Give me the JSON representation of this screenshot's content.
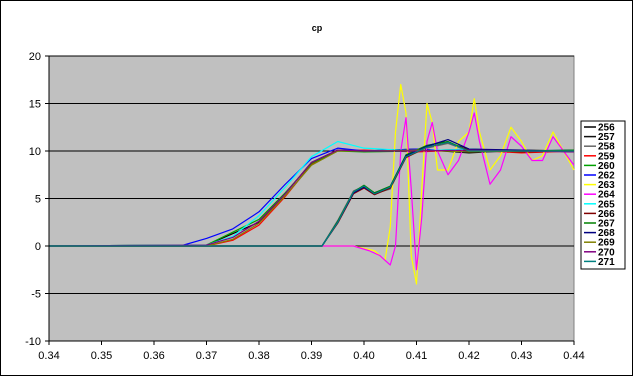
{
  "chart_data": {
    "type": "line",
    "title": "cp",
    "xlabel": "",
    "ylabel": "",
    "xlim": [
      0.34,
      0.44
    ],
    "ylim": [
      -10,
      20
    ],
    "x_ticks": [
      "0.34",
      "0.35",
      "0.36",
      "0.37",
      "0.38",
      "0.39",
      "0.40",
      "0.41",
      "0.42",
      "0.43",
      "0.44"
    ],
    "y_ticks": [
      "-10",
      "-5",
      "0",
      "5",
      "10",
      "15",
      "20"
    ],
    "grid": "horizontal",
    "plot_background": "#c0c0c0",
    "legend_position": "right",
    "series": [
      {
        "name": "256",
        "color": "#000000",
        "points": [
          [
            0.34,
            0
          ],
          [
            0.37,
            0.1
          ],
          [
            0.38,
            2.5
          ],
          [
            0.385,
            5.5
          ],
          [
            0.39,
            8.8
          ],
          [
            0.395,
            10.1
          ],
          [
            0.4,
            10
          ],
          [
            0.41,
            10.2
          ],
          [
            0.42,
            9.8
          ],
          [
            0.43,
            10.1
          ],
          [
            0.44,
            10
          ]
        ]
      },
      {
        "name": "257",
        "color": "#111111",
        "points": [
          [
            0.34,
            0
          ],
          [
            0.392,
            0
          ],
          [
            0.395,
            2.5
          ],
          [
            0.398,
            5.6
          ],
          [
            0.4,
            6.2
          ],
          [
            0.402,
            5.6
          ],
          [
            0.405,
            6.2
          ],
          [
            0.408,
            9.5
          ],
          [
            0.412,
            10.5
          ],
          [
            0.415,
            11
          ],
          [
            0.42,
            10.2
          ],
          [
            0.43,
            10
          ],
          [
            0.44,
            10
          ]
        ]
      },
      {
        "name": "258",
        "color": "#666666",
        "points": [
          [
            0.34,
            0
          ],
          [
            0.392,
            0
          ],
          [
            0.395,
            2.7
          ],
          [
            0.398,
            5.8
          ],
          [
            0.4,
            6.3
          ],
          [
            0.402,
            5.5
          ],
          [
            0.405,
            6
          ],
          [
            0.408,
            9.4
          ],
          [
            0.412,
            10.3
          ],
          [
            0.416,
            10.8
          ],
          [
            0.42,
            10
          ],
          [
            0.43,
            10.1
          ],
          [
            0.44,
            9.9
          ]
        ]
      },
      {
        "name": "259",
        "color": "#ff0000",
        "points": [
          [
            0.34,
            0
          ],
          [
            0.37,
            0
          ],
          [
            0.375,
            0.6
          ],
          [
            0.38,
            2.2
          ],
          [
            0.385,
            5.2
          ],
          [
            0.39,
            8.6
          ],
          [
            0.395,
            10
          ],
          [
            0.4,
            10.1
          ],
          [
            0.41,
            9.9
          ],
          [
            0.42,
            10.1
          ],
          [
            0.43,
            9.8
          ],
          [
            0.44,
            10
          ]
        ]
      },
      {
        "name": "260",
        "color": "#00a000",
        "points": [
          [
            0.34,
            0
          ],
          [
            0.37,
            0.1
          ],
          [
            0.38,
            2.8
          ],
          [
            0.385,
            5.6
          ],
          [
            0.39,
            8.7
          ],
          [
            0.395,
            10
          ],
          [
            0.4,
            9.9
          ],
          [
            0.41,
            10
          ],
          [
            0.42,
            10.2
          ],
          [
            0.43,
            9.9
          ],
          [
            0.44,
            10.1
          ]
        ]
      },
      {
        "name": "262",
        "color": "#0000ff",
        "points": [
          [
            0.34,
            0
          ],
          [
            0.365,
            0
          ],
          [
            0.37,
            0.8
          ],
          [
            0.375,
            1.8
          ],
          [
            0.38,
            3.6
          ],
          [
            0.385,
            6.5
          ],
          [
            0.39,
            9.2
          ],
          [
            0.395,
            10.3
          ],
          [
            0.4,
            10
          ],
          [
            0.41,
            10.2
          ],
          [
            0.42,
            9.9
          ],
          [
            0.43,
            10
          ],
          [
            0.44,
            10.1
          ]
        ]
      },
      {
        "name": "263",
        "color": "#ffff00",
        "points": [
          [
            0.34,
            0
          ],
          [
            0.398,
            0
          ],
          [
            0.402,
            -0.5
          ],
          [
            0.404,
            -1.5
          ],
          [
            0.405,
            2
          ],
          [
            0.406,
            12
          ],
          [
            0.407,
            17
          ],
          [
            0.408,
            14
          ],
          [
            0.409,
            -1
          ],
          [
            0.41,
            -4
          ],
          [
            0.411,
            6
          ],
          [
            0.412,
            15
          ],
          [
            0.413,
            13
          ],
          [
            0.414,
            8
          ],
          [
            0.416,
            8
          ],
          [
            0.418,
            11
          ],
          [
            0.42,
            12
          ],
          [
            0.421,
            15.5
          ],
          [
            0.422,
            12
          ],
          [
            0.424,
            8
          ],
          [
            0.426,
            9.5
          ],
          [
            0.428,
            12.5
          ],
          [
            0.43,
            11
          ],
          [
            0.432,
            9
          ],
          [
            0.434,
            9.5
          ],
          [
            0.436,
            12
          ],
          [
            0.438,
            10
          ],
          [
            0.44,
            8
          ]
        ]
      },
      {
        "name": "264",
        "color": "#ff00ff",
        "points": [
          [
            0.34,
            0
          ],
          [
            0.398,
            0
          ],
          [
            0.401,
            -0.5
          ],
          [
            0.403,
            -1
          ],
          [
            0.405,
            -2
          ],
          [
            0.406,
            0
          ],
          [
            0.407,
            10
          ],
          [
            0.408,
            13.5
          ],
          [
            0.409,
            6
          ],
          [
            0.41,
            -2.5
          ],
          [
            0.411,
            3
          ],
          [
            0.412,
            11
          ],
          [
            0.413,
            13
          ],
          [
            0.414,
            10
          ],
          [
            0.416,
            7.5
          ],
          [
            0.418,
            9
          ],
          [
            0.42,
            12
          ],
          [
            0.421,
            14
          ],
          [
            0.422,
            11
          ],
          [
            0.424,
            6.5
          ],
          [
            0.426,
            8
          ],
          [
            0.428,
            11.5
          ],
          [
            0.43,
            10.5
          ],
          [
            0.432,
            9
          ],
          [
            0.434,
            9
          ],
          [
            0.436,
            11.5
          ],
          [
            0.438,
            10
          ],
          [
            0.44,
            8.5
          ]
        ]
      },
      {
        "name": "265",
        "color": "#00ffff",
        "points": [
          [
            0.34,
            0
          ],
          [
            0.37,
            0.1
          ],
          [
            0.375,
            1
          ],
          [
            0.38,
            3.2
          ],
          [
            0.385,
            6.2
          ],
          [
            0.39,
            9.4
          ],
          [
            0.395,
            11
          ],
          [
            0.4,
            10.3
          ],
          [
            0.41,
            10
          ],
          [
            0.42,
            10.2
          ],
          [
            0.43,
            10
          ],
          [
            0.44,
            10
          ]
        ]
      },
      {
        "name": "266",
        "color": "#800000",
        "points": [
          [
            0.34,
            0
          ],
          [
            0.392,
            0
          ],
          [
            0.395,
            2.4
          ],
          [
            0.398,
            5.5
          ],
          [
            0.4,
            6.1
          ],
          [
            0.402,
            5.4
          ],
          [
            0.405,
            6.1
          ],
          [
            0.408,
            9.3
          ],
          [
            0.412,
            10.4
          ],
          [
            0.416,
            10.9
          ],
          [
            0.42,
            10.1
          ],
          [
            0.43,
            9.9
          ],
          [
            0.44,
            10
          ]
        ]
      },
      {
        "name": "267",
        "color": "#008000",
        "points": [
          [
            0.34,
            0
          ],
          [
            0.392,
            0
          ],
          [
            0.395,
            2.6
          ],
          [
            0.398,
            5.7
          ],
          [
            0.4,
            6.4
          ],
          [
            0.402,
            5.6
          ],
          [
            0.405,
            6.3
          ],
          [
            0.408,
            9.6
          ],
          [
            0.412,
            10.6
          ],
          [
            0.416,
            11
          ],
          [
            0.42,
            10
          ],
          [
            0.43,
            10
          ],
          [
            0.44,
            10.1
          ]
        ]
      },
      {
        "name": "268",
        "color": "#000080",
        "points": [
          [
            0.34,
            0
          ],
          [
            0.392,
            0
          ],
          [
            0.395,
            2.5
          ],
          [
            0.398,
            5.6
          ],
          [
            0.4,
            6.2
          ],
          [
            0.402,
            5.5
          ],
          [
            0.405,
            6.2
          ],
          [
            0.408,
            9.5
          ],
          [
            0.412,
            10.5
          ],
          [
            0.416,
            11.2
          ],
          [
            0.42,
            10.2
          ],
          [
            0.43,
            10.1
          ],
          [
            0.44,
            9.9
          ]
        ]
      },
      {
        "name": "269",
        "color": "#808000",
        "points": [
          [
            0.34,
            0
          ],
          [
            0.37,
            0
          ],
          [
            0.375,
            0.7
          ],
          [
            0.38,
            2.4
          ],
          [
            0.385,
            5.3
          ],
          [
            0.39,
            8.5
          ],
          [
            0.395,
            10
          ],
          [
            0.4,
            10
          ],
          [
            0.41,
            10.1
          ],
          [
            0.42,
            9.9
          ],
          [
            0.43,
            10
          ],
          [
            0.44,
            10
          ]
        ]
      },
      {
        "name": "270",
        "color": "#800080",
        "points": [
          [
            0.34,
            0
          ],
          [
            0.37,
            0.1
          ],
          [
            0.375,
            0.9
          ],
          [
            0.38,
            2.6
          ],
          [
            0.385,
            5.5
          ],
          [
            0.39,
            8.8
          ],
          [
            0.395,
            10.1
          ],
          [
            0.4,
            10
          ],
          [
            0.41,
            10
          ],
          [
            0.42,
            10.1
          ],
          [
            0.43,
            10
          ],
          [
            0.44,
            9.9
          ]
        ]
      },
      {
        "name": "271",
        "color": "#008080",
        "points": [
          [
            0.34,
            0
          ],
          [
            0.392,
            0
          ],
          [
            0.395,
            2.5
          ],
          [
            0.398,
            5.7
          ],
          [
            0.4,
            6.3
          ],
          [
            0.402,
            5.5
          ],
          [
            0.405,
            6.2
          ],
          [
            0.408,
            9.4
          ],
          [
            0.412,
            10.4
          ],
          [
            0.416,
            10.9
          ],
          [
            0.42,
            10
          ],
          [
            0.43,
            10
          ],
          [
            0.44,
            10
          ]
        ]
      }
    ]
  }
}
